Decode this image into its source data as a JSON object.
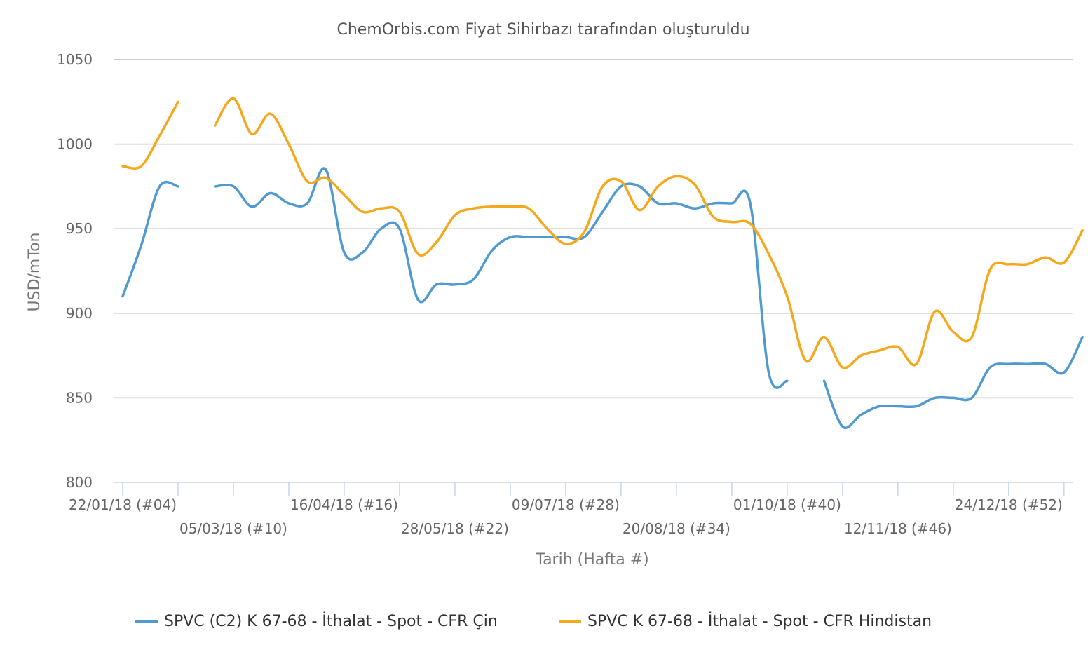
{
  "chart_data": {
    "type": "line",
    "title": "ChemOrbis.com Fiyat Sihirbazı tarafından oluşturuldu",
    "xlabel": "Tarih (Hafta #)",
    "ylabel": "USD/mTon",
    "ylim": [
      800,
      1050
    ],
    "yticks": [
      800,
      850,
      900,
      950,
      1000,
      1050
    ],
    "grid": true,
    "legend_position": "bottom",
    "x_week_range": [
      4,
      52
    ],
    "x_tick_labels": [
      {
        "week": 4,
        "label": "22/01/18 (#04)",
        "row": 0
      },
      {
        "week": 10,
        "label": "05/03/18 (#10)",
        "row": 1
      },
      {
        "week": 16,
        "label": "16/04/18 (#16)",
        "row": 0
      },
      {
        "week": 22,
        "label": "28/05/18 (#22)",
        "row": 1
      },
      {
        "week": 28,
        "label": "09/07/18 (#28)",
        "row": 0
      },
      {
        "week": 34,
        "label": "20/08/18 (#34)",
        "row": 1
      },
      {
        "week": 40,
        "label": "01/10/18 (#40)",
        "row": 0
      },
      {
        "week": 46,
        "label": "12/11/18 (#46)",
        "row": 1
      },
      {
        "week": 52,
        "label": "24/12/18 (#52)",
        "row": 0
      }
    ],
    "series": [
      {
        "name": "SPVC (C2) K 67-68 - İthalat - Spot - CFR Çin",
        "color": "#4f9bd1",
        "points": [
          [
            4,
            910
          ],
          [
            5,
            940
          ],
          [
            6,
            975
          ],
          [
            7,
            975
          ],
          [
            9,
            975
          ],
          [
            10,
            975
          ],
          [
            11,
            963
          ],
          [
            12,
            971
          ],
          [
            13,
            965
          ],
          [
            14,
            965
          ],
          [
            15,
            985
          ],
          [
            16,
            936
          ],
          [
            17,
            936
          ],
          [
            18,
            950
          ],
          [
            19,
            950
          ],
          [
            20,
            908
          ],
          [
            21,
            917
          ],
          [
            22,
            917
          ],
          [
            23,
            920
          ],
          [
            24,
            937
          ],
          [
            25,
            945
          ],
          [
            26,
            945
          ],
          [
            27,
            945
          ],
          [
            28,
            945
          ],
          [
            29,
            945
          ],
          [
            30,
            960
          ],
          [
            31,
            975
          ],
          [
            32,
            975
          ],
          [
            33,
            965
          ],
          [
            34,
            965
          ],
          [
            35,
            962
          ],
          [
            36,
            965
          ],
          [
            37,
            965
          ],
          [
            38,
            965
          ],
          [
            39,
            865
          ],
          [
            40,
            860
          ],
          [
            42,
            860
          ],
          [
            43,
            833
          ],
          [
            44,
            840
          ],
          [
            45,
            845
          ],
          [
            46,
            845
          ],
          [
            47,
            845
          ],
          [
            48,
            850
          ],
          [
            49,
            850
          ],
          [
            50,
            850
          ],
          [
            51,
            868
          ],
          [
            52,
            870
          ],
          [
            53,
            870
          ],
          [
            54,
            870
          ],
          [
            55,
            865
          ],
          [
            56,
            886
          ]
        ]
      },
      {
        "name": "SPVC K 67-68 - İthalat - Spot - CFR Hindistan",
        "color": "#f5a81c",
        "points": [
          [
            4,
            987
          ],
          [
            5,
            987
          ],
          [
            6,
            1005
          ],
          [
            7,
            1025
          ],
          [
            9,
            1011
          ],
          [
            10,
            1027
          ],
          [
            11,
            1006
          ],
          [
            12,
            1018
          ],
          [
            13,
            1000
          ],
          [
            14,
            978
          ],
          [
            15,
            980
          ],
          [
            16,
            970
          ],
          [
            17,
            960
          ],
          [
            18,
            962
          ],
          [
            19,
            960
          ],
          [
            20,
            935
          ],
          [
            21,
            942
          ],
          [
            22,
            958
          ],
          [
            23,
            962
          ],
          [
            24,
            963
          ],
          [
            25,
            963
          ],
          [
            26,
            962
          ],
          [
            27,
            950
          ],
          [
            28,
            941
          ],
          [
            29,
            948
          ],
          [
            30,
            975
          ],
          [
            31,
            978
          ],
          [
            32,
            961
          ],
          [
            33,
            975
          ],
          [
            34,
            981
          ],
          [
            35,
            976
          ],
          [
            36,
            957
          ],
          [
            37,
            954
          ],
          [
            38,
            953
          ],
          [
            39,
            935
          ],
          [
            40,
            910
          ],
          [
            41,
            872
          ],
          [
            42,
            886
          ],
          [
            43,
            868
          ],
          [
            44,
            875
          ],
          [
            45,
            878
          ],
          [
            46,
            880
          ],
          [
            47,
            870
          ],
          [
            48,
            901
          ],
          [
            49,
            889
          ],
          [
            50,
            886
          ],
          [
            51,
            926
          ],
          [
            52,
            929
          ],
          [
            53,
            929
          ],
          [
            54,
            933
          ],
          [
            55,
            930
          ],
          [
            56,
            949
          ]
        ]
      }
    ]
  }
}
